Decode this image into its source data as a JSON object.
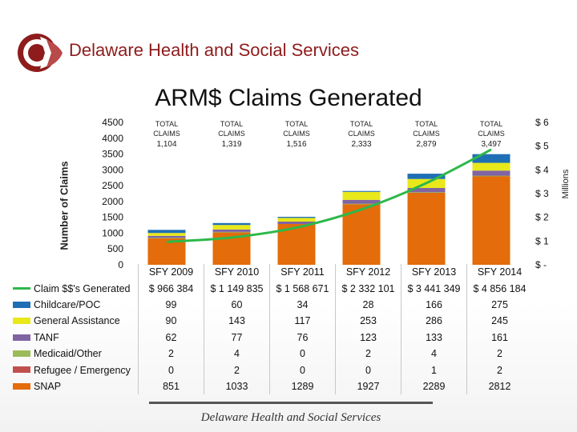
{
  "header": {
    "org_name": "Delaware Health and Social Services",
    "title": "ARM$ Claims Generated"
  },
  "footer": {
    "text": "Delaware Health and Social Services"
  },
  "colors": {
    "brand_red": "#8e1c1c",
    "snap": "#E46C0A",
    "refugee": "#C0504D",
    "medicaid": "#9BBB59",
    "tanf": "#8064A2",
    "general_assistance": "#E8E81A",
    "childcare": "#1F6FB5",
    "claim_line": "#2DB84A"
  },
  "chart_data": {
    "type": "bar",
    "stacked": true,
    "title": "ARM$ Claims Generated",
    "ylabel": "Number of Claims",
    "y2label": "Millions",
    "ylim": [
      0,
      4500
    ],
    "yticks": [
      "0",
      "500",
      "1000",
      "1500",
      "2000",
      "2500",
      "3000",
      "3500",
      "4000",
      "4500"
    ],
    "y2lim": [
      0,
      6
    ],
    "y2ticks": [
      "$ -",
      "$ 1",
      "$ 2",
      "$ 3",
      "$ 4",
      "$ 5",
      "$ 6"
    ],
    "categories": [
      "SFY 2009",
      "SFY 2010",
      "SFY 2011",
      "SFY 2012",
      "SFY 2013",
      "SFY 2014"
    ],
    "total_label_prefix": "TOTAL CLAIMS",
    "totals": [
      "1,104",
      "1,319",
      "1,516",
      "2,333",
      "2,879",
      "3,497"
    ],
    "series": [
      {
        "name": "SNAP",
        "values": [
          851,
          1033,
          1289,
          1927,
          2289,
          2812
        ],
        "display": [
          "851",
          "1033",
          "1289",
          "1927",
          "2289",
          "2812"
        ]
      },
      {
        "name": "Refugee / Emergency",
        "values": [
          0,
          2,
          0,
          0,
          1,
          2
        ],
        "display": [
          "0",
          "2",
          "0",
          "0",
          "1",
          "2"
        ]
      },
      {
        "name": "Medicaid/Other",
        "values": [
          2,
          4,
          0,
          2,
          4,
          2
        ],
        "display": [
          "2",
          "4",
          "0",
          "2",
          "4",
          "2"
        ]
      },
      {
        "name": "TANF",
        "values": [
          62,
          77,
          76,
          123,
          133,
          161
        ],
        "display": [
          "62",
          "77",
          "76",
          "123",
          "133",
          "161"
        ]
      },
      {
        "name": "General Assistance",
        "values": [
          90,
          143,
          117,
          253,
          286,
          245
        ],
        "display": [
          "90",
          "143",
          "117",
          "253",
          "286",
          "245"
        ]
      },
      {
        "name": "Childcare/POC",
        "values": [
          99,
          60,
          34,
          28,
          166,
          275
        ],
        "display": [
          "99",
          "60",
          "34",
          "28",
          "166",
          "275"
        ]
      }
    ],
    "claims_dollars": {
      "name": "Claim $$'s Generated",
      "axis": "secondary",
      "values_millions": [
        0.966384,
        1.149835,
        1.568671,
        2.332101,
        3.441349,
        4.856184
      ],
      "display": [
        "$ 966 384",
        "$ 1 149 835",
        "$ 1 568 671",
        "$ 2 332 101",
        "$ 3 441 349",
        "$ 4 856 184"
      ]
    }
  },
  "table": {
    "row_order": [
      "Claim $$'s Generated",
      "Childcare/POC",
      "General Assistance",
      "TANF",
      "Medicaid/Other",
      "Refugee / Emergency",
      "SNAP"
    ]
  }
}
